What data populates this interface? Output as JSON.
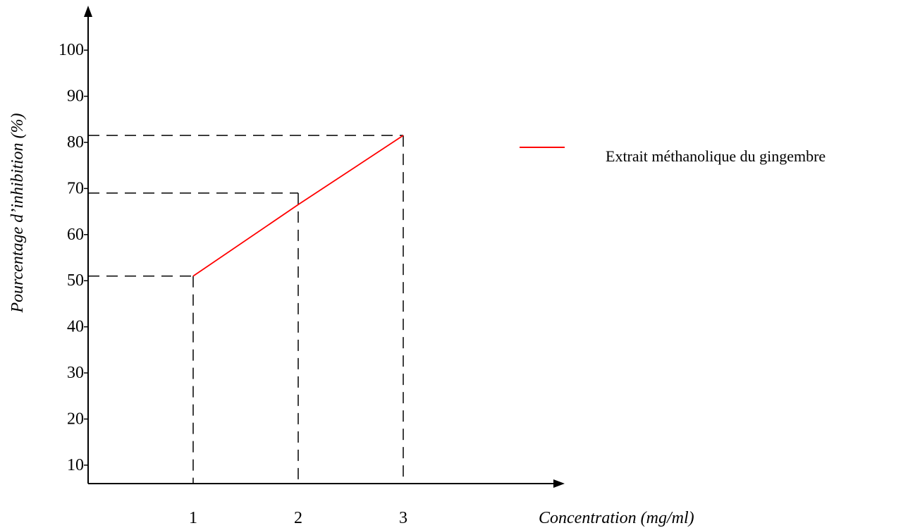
{
  "chart_data": {
    "type": "line",
    "xlabel": "Concentration (mg/ml)",
    "ylabel": "Pourcentage d’inhibition (%)",
    "x_ticks": [
      "1",
      "2",
      "3"
    ],
    "y_ticks": [
      "10",
      "20",
      "30",
      "40",
      "50",
      "60",
      "70",
      "80",
      "90",
      "100"
    ],
    "xlim": [
      0,
      4.4
    ],
    "ylim": [
      6,
      104
    ],
    "grid": false,
    "legend_position": "right",
    "series": [
      {
        "name": "Extrait méthanolique du gingembre",
        "color": "#ff0000",
        "x": [
          1,
          2,
          3
        ],
        "y": [
          51,
          66.5,
          81.5
        ]
      }
    ],
    "reference_lines": [
      {
        "x": 1,
        "y": 51
      },
      {
        "x": 2,
        "y": 69
      },
      {
        "x": 3,
        "y": 81.5
      }
    ]
  }
}
